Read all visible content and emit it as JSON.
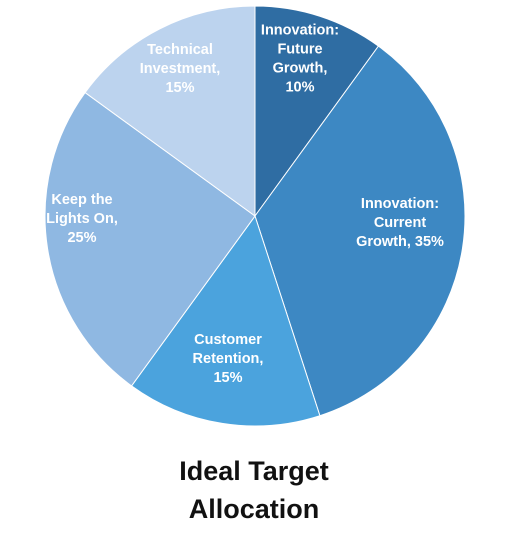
{
  "chart_data": {
    "type": "pie",
    "title_lines": [
      "Ideal Target",
      "Allocation"
    ],
    "slices": [
      {
        "label_lines": [
          "Innovation:",
          "Future",
          "Growth,",
          "10%"
        ],
        "value": 10,
        "color": "#2f6da3"
      },
      {
        "label_lines": [
          "Innovation:",
          "Current",
          "Growth, 35%"
        ],
        "value": 35,
        "color": "#3d88c3"
      },
      {
        "label_lines": [
          "Customer",
          "Retention,",
          "15%"
        ],
        "value": 15,
        "color": "#4ba3dd"
      },
      {
        "label_lines": [
          "Keep the",
          "Lights On,",
          "25%"
        ],
        "value": 25,
        "color": "#8fb8e2"
      },
      {
        "label_lines": [
          "Technical",
          "Investment,",
          "15%"
        ],
        "value": 15,
        "color": "#bcd3ee"
      }
    ],
    "legend": "none"
  }
}
